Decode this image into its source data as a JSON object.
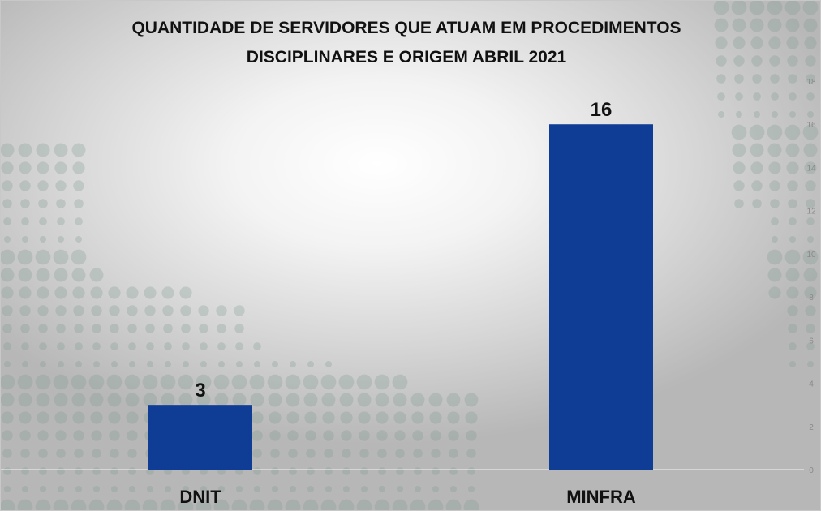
{
  "chart_data": {
    "type": "bar",
    "title": [
      "QUANTIDADE DE SERVIDORES QUE ATUAM EM PROCEDIMENTOS",
      "DISCIPLINARES E ORIGEM ABRIL 2021"
    ],
    "categories": [
      "DNIT",
      "MINFRA"
    ],
    "values": [
      3,
      16
    ],
    "data_labels": [
      "3",
      "16"
    ],
    "ylim": [
      0,
      18
    ],
    "yticks": [
      0,
      2,
      4,
      6,
      8,
      10,
      12,
      14,
      16,
      18
    ],
    "y_axis_side": "right",
    "bar_color": "#0f3d96",
    "grid": false,
    "legend": false
  }
}
